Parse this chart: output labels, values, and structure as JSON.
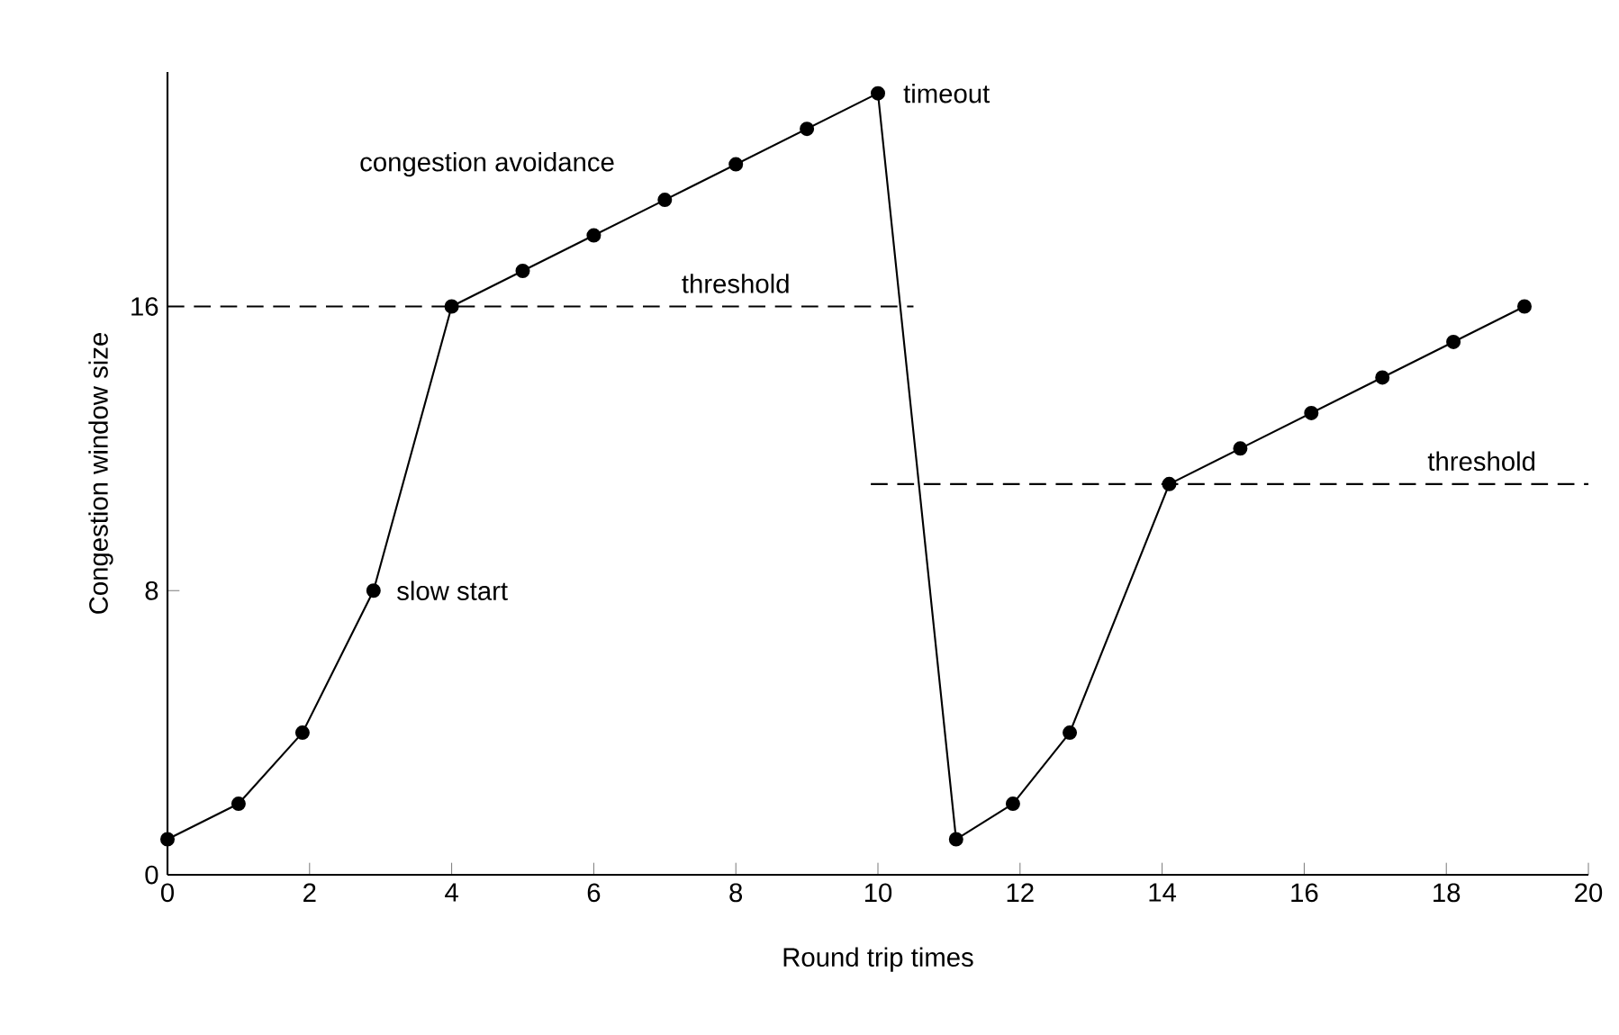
{
  "chart_data": {
    "type": "line",
    "xlabel": "Round trip times",
    "ylabel": "Congestion window size",
    "xlim": [
      0,
      20
    ],
    "ylim": [
      0,
      22.6
    ],
    "xticks": [
      0,
      2,
      4,
      6,
      8,
      10,
      12,
      14,
      16,
      18,
      20
    ],
    "yticks": [
      0,
      8,
      16
    ],
    "series": [
      {
        "color": "#000000",
        "marker": "circle",
        "line_style": "solid",
        "x": [
          0,
          1,
          1.9,
          2.9,
          4,
          5,
          6,
          7,
          8,
          9,
          10,
          11.1,
          11.9,
          12.7,
          14.1,
          15.1,
          16.1,
          17.1,
          18.1,
          19.1
        ],
        "values": [
          1,
          2,
          4,
          8,
          16,
          17,
          18,
          19,
          20,
          21,
          22,
          1,
          2,
          4,
          11,
          12,
          13,
          14,
          15,
          16
        ]
      },
      {
        "color": "#000000",
        "marker": "none",
        "line_style": "dashed",
        "x": [
          0,
          10.5
        ],
        "values": [
          16,
          16
        ]
      },
      {
        "color": "#000000",
        "marker": "none",
        "line_style": "dashed",
        "x": [
          9.9,
          20
        ],
        "values": [
          11,
          11
        ]
      }
    ],
    "annotations": [
      {
        "text": "slow start",
        "x": 2.9,
        "y": 8
      },
      "congestion avoidance",
      {
        "text": "timeout",
        "x": 10,
        "y": 22
      },
      {
        "text": "threshold",
        "x": 8,
        "y": 16
      },
      {
        "text": "threshold",
        "x": 18.5,
        "y": 11
      }
    ]
  }
}
